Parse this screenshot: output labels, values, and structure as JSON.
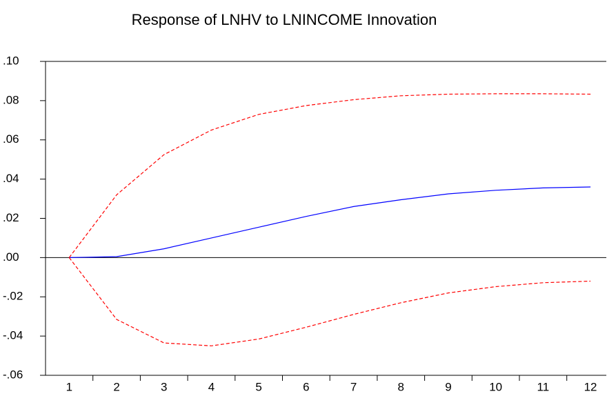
{
  "chart_data": {
    "type": "line",
    "title": "Response of LNHV to LNINCOME Innovation",
    "categories": [
      "1",
      "2",
      "3",
      "4",
      "5",
      "6",
      "7",
      "8",
      "9",
      "10",
      "11",
      "12"
    ],
    "series": [
      {
        "color": "#0000ff",
        "dashed": false,
        "values": [
          0,
          0.0005,
          0.0045,
          0.01,
          0.0155,
          0.021,
          0.026,
          0.0295,
          0.0325,
          0.0343,
          0.0355,
          0.036
        ]
      },
      {
        "color": "#ff0000",
        "dashed": true,
        "values": [
          0,
          0.032,
          0.0525,
          0.065,
          0.073,
          0.0775,
          0.0805,
          0.0825,
          0.0833,
          0.0835,
          0.0835,
          0.0833
        ]
      },
      {
        "color": "#ff0000",
        "dashed": true,
        "values": [
          0,
          -0.0315,
          -0.0435,
          -0.045,
          -0.0415,
          -0.0355,
          -0.029,
          -0.023,
          -0.018,
          -0.0148,
          -0.0128,
          -0.012
        ]
      }
    ],
    "ylim": [
      -0.06,
      0.1
    ],
    "yticks": [
      {
        "value": -0.06,
        "label": "-.06"
      },
      {
        "value": -0.04,
        "label": "-.04"
      },
      {
        "value": -0.02,
        "label": "-.02"
      },
      {
        "value": 0,
        "label": ".00"
      },
      {
        "value": 0.02,
        "label": ".02"
      },
      {
        "value": 0.04,
        "label": ".04"
      },
      {
        "value": 0.06,
        "label": ".06"
      },
      {
        "value": 0.08,
        "label": ".08"
      },
      {
        "value": 0.1,
        "label": ".10"
      }
    ],
    "grid": false
  }
}
